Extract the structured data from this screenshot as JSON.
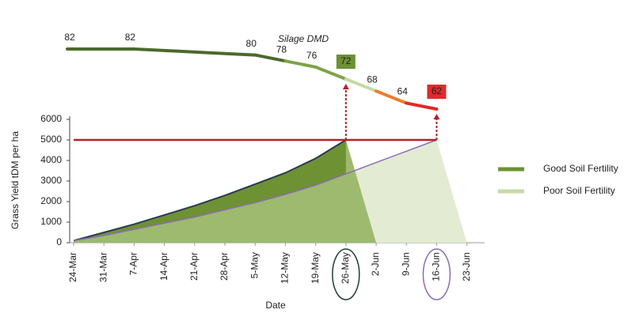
{
  "chart_data": {
    "type": "area",
    "dmd_title": "Silage DMD",
    "xlabel": "Date",
    "ylabel": "Grass Yield tDM per ha",
    "categories": [
      "24-Mar",
      "31-Mar",
      "7-Apr",
      "14-Apr",
      "21-Apr",
      "28-Apr",
      "5-May",
      "12-May",
      "19-May",
      "26-May",
      "2-Jun",
      "9-Jun",
      "16-Jun",
      "23-Jun"
    ],
    "ylim": [
      0,
      6000
    ],
    "yticks": [
      0,
      1000,
      2000,
      3000,
      4000,
      5000,
      6000
    ],
    "target": 5000,
    "target_color": "#b5202a",
    "series": [
      {
        "name": "Good Soil Fertility",
        "color": "#6e9134",
        "line_color": "#2b3a4e",
        "fill_color": "#9dba6e",
        "values": [
          100,
          500,
          900,
          1350,
          1800,
          2300,
          2850,
          3400,
          4100,
          5000,
          0,
          null,
          null,
          null
        ]
      },
      {
        "name": "Poor Soil Fertility",
        "color": "#c6daa6",
        "line_color": "#8a6db3",
        "fill_color": "#e3ebd3",
        "values": [
          100,
          350,
          650,
          950,
          1250,
          1600,
          1950,
          2350,
          2800,
          3350,
          3900,
          4450,
          5000,
          0
        ]
      }
    ],
    "circled": [
      {
        "index": 9,
        "color": "#1f3d3a"
      },
      {
        "index": 12,
        "color": "#8a6db3"
      }
    ],
    "dmd": {
      "x": [
        "24-Mar",
        "7-Apr",
        "5-May",
        "12-May",
        "19-May",
        "26-May",
        "2-Jun",
        "9-Jun",
        "16-Jun"
      ],
      "values": [
        82,
        82,
        80,
        78,
        76,
        72,
        68,
        64,
        62
      ],
      "segment_colors": [
        "#4b6a2b",
        "#4b6a2b",
        "#4b6a2b",
        "#7ea346",
        "#7ea346",
        "#c4dba4",
        "#f07a2a",
        "#e02a2a"
      ],
      "boxed": [
        {
          "index": 5,
          "color": "#6e9134"
        },
        {
          "index": 8,
          "color": "#e02a2a"
        }
      ]
    }
  }
}
